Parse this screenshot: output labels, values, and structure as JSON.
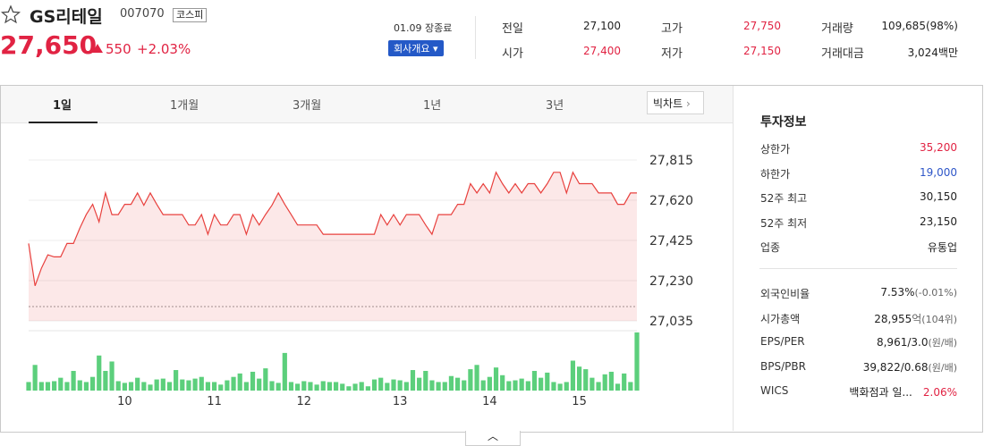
{
  "header": {
    "name": "GS리테일",
    "code": "007070",
    "market": "코스피",
    "price": "27,650",
    "change": "550",
    "change_rate": "+2.03%",
    "status": "01.09 장종료",
    "company_button": "회사개요"
  },
  "summary": [
    {
      "label": "전일",
      "value": "27,100"
    },
    {
      "label": "고가",
      "value": "27,750"
    },
    {
      "label": "거래량",
      "value": "109,685(98%)"
    },
    {
      "label": "시가",
      "value": "27,400"
    },
    {
      "label": "저가",
      "value": "27,150"
    },
    {
      "label": "거래대금",
      "value": "3,024백만"
    }
  ],
  "tabs": [
    "1일",
    "1개월",
    "3개월",
    "1년",
    "3년"
  ],
  "big_chart": "빅차트",
  "chart_data": {
    "type": "line",
    "color": "#e8413e",
    "grid": true,
    "categories": [
      null,
      null,
      null,
      null,
      null,
      null,
      null,
      null,
      null,
      null,
      null,
      null,
      null,
      null,
      null,
      "10",
      null,
      null,
      null,
      null,
      null,
      null,
      null,
      null,
      null,
      null,
      null,
      null,
      null,
      "11",
      null,
      null,
      null,
      null,
      null,
      null,
      null,
      null,
      null,
      null,
      null,
      null,
      null,
      "12",
      null,
      null,
      null,
      null,
      null,
      null,
      null,
      null,
      null,
      null,
      null,
      null,
      null,
      null,
      "13",
      null,
      null,
      null,
      null,
      null,
      null,
      null,
      null,
      null,
      null,
      null,
      null,
      null,
      "14",
      null,
      null,
      null,
      null,
      null,
      null,
      null,
      null,
      null,
      null,
      null,
      null,
      null,
      "15",
      null,
      null,
      null,
      null,
      null,
      null,
      null,
      null,
      null
    ],
    "values": [
      27410,
      27205,
      27290,
      27355,
      27345,
      27345,
      27410,
      27410,
      27485,
      27550,
      27600,
      27515,
      27655,
      27550,
      27550,
      27600,
      27600,
      27655,
      27595,
      27655,
      27600,
      27550,
      27550,
      27550,
      27550,
      27500,
      27500,
      27550,
      27455,
      27550,
      27500,
      27500,
      27550,
      27550,
      27455,
      27550,
      27500,
      27550,
      27595,
      27655,
      27600,
      27550,
      27500,
      27500,
      27500,
      27500,
      27455,
      27455,
      27455,
      27455,
      27455,
      27455,
      27455,
      27455,
      27455,
      27550,
      27500,
      27550,
      27500,
      27550,
      27550,
      27550,
      27500,
      27455,
      27550,
      27550,
      27550,
      27600,
      27600,
      27700,
      27655,
      27700,
      27655,
      27755,
      27700,
      27655,
      27700,
      27655,
      27700,
      27700,
      27655,
      27700,
      27755,
      27755,
      27655,
      27755,
      27700,
      27700,
      27700,
      27655,
      27655,
      27655,
      27600,
      27600,
      27655,
      27655
    ],
    "ylim": [
      27035,
      27960
    ],
    "yticks": [
      {
        "value": 27035,
        "label": "27,035"
      },
      {
        "value": 27230,
        "label": "27,230"
      },
      {
        "value": 27425,
        "label": "27,425"
      },
      {
        "value": 27620,
        "label": "27,620"
      },
      {
        "value": 27815,
        "label": "27,815"
      }
    ],
    "volume": {
      "type": "bar",
      "color": "#5ccf7c",
      "ylim": [
        0,
        7000
      ],
      "values": [
        1000,
        3000,
        1000,
        1000,
        1100,
        1500,
        1000,
        2300,
        1200,
        1000,
        1600,
        4100,
        2300,
        3400,
        1100,
        900,
        1000,
        1500,
        1000,
        700,
        1300,
        1400,
        1000,
        2400,
        1300,
        1200,
        1400,
        1600,
        1000,
        1000,
        700,
        1200,
        1600,
        2000,
        1000,
        2200,
        1400,
        2600,
        1100,
        900,
        4400,
        1000,
        800,
        1100,
        1000,
        700,
        1100,
        1000,
        1000,
        800,
        500,
        800,
        1000,
        500,
        1300,
        1500,
        900,
        1300,
        1200,
        1000,
        2400,
        1500,
        2300,
        1200,
        1000,
        1000,
        1700,
        1500,
        1200,
        2500,
        3000,
        1200,
        1600,
        2700,
        1800,
        1100,
        1200,
        1400,
        1100,
        2300,
        1500,
        2100,
        1000,
        800,
        1000,
        3500,
        2800,
        2500,
        1500,
        1000,
        1900,
        2200,
        800,
        2000,
        1000,
        6800
      ]
    }
  },
  "invest": {
    "title": "투자정보",
    "rows": [
      {
        "label": "상한가",
        "value": "35,200"
      },
      {
        "label": "하한가",
        "value": "19,000"
      },
      {
        "label": "52주 최고",
        "value": "30,150"
      },
      {
        "label": "52주 최저",
        "value": "23,150"
      },
      {
        "label": "업종",
        "value": "유통업"
      }
    ],
    "rows2": [
      {
        "label": "외국인비율",
        "value": "7.53%",
        "note": "(-0.01%)"
      },
      {
        "label": "시가총액",
        "value": "28,955",
        "unit": "억",
        "note": "(104위)"
      },
      {
        "label": "EPS/PER",
        "value": "8,961/3.0",
        "note": "(원/배)"
      },
      {
        "label": "BPS/PBR",
        "value": "39,822/0.68",
        "note": "(원/배)"
      },
      {
        "label": "WICS",
        "value": "백화점과 일...",
        "note": "2.06%"
      }
    ]
  }
}
